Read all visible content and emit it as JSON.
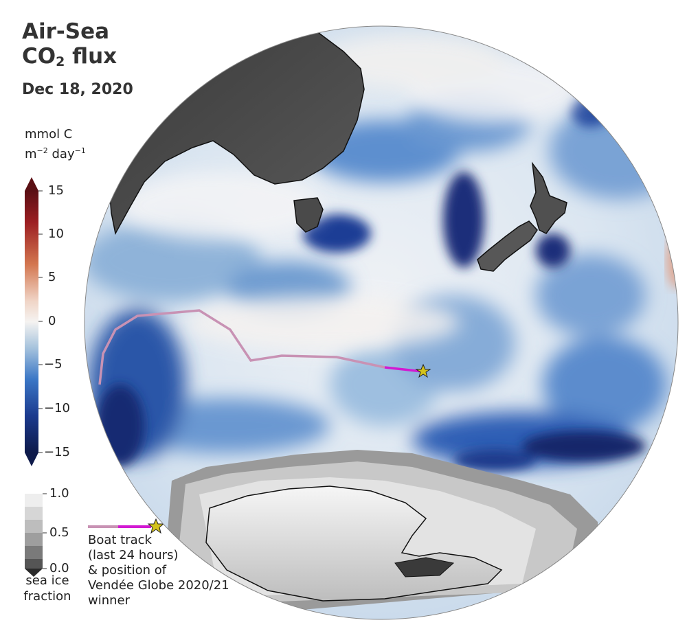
{
  "title": {
    "line1": "Air-Sea",
    "line2_main": "CO",
    "line2_sub": "2",
    "line2_rest": " flux"
  },
  "date": "Dec 18, 2020",
  "units": {
    "line1": "mmol C",
    "line2_m": "m",
    "line2_exp1": "−2",
    "line2_day": " day",
    "line2_exp2": "−1"
  },
  "flux_colorbar": {
    "ticks": [
      "15",
      "10",
      "5",
      "0",
      "−5",
      "−10",
      "−15"
    ],
    "colors": {
      "max": "#5a0f14",
      "pos": "#c9583a",
      "zero": "#f5f3f1",
      "neg": "#3a6fc0",
      "min": "#0e1a4a"
    }
  },
  "ice_colorbar": {
    "ticks": [
      "1.0",
      "0.5",
      "0.0"
    ],
    "caption_line1": "sea ice",
    "caption_line2": "fraction"
  },
  "legend": {
    "line1": "Boat track",
    "line2": "(last 24 hours)",
    "line3": "& position of",
    "line4": "Vendée Globe 2020/21",
    "line5": "winner",
    "track_color_old": "#c892b4",
    "track_color_recent": "#d21ad2",
    "star_color": "#d4c21a"
  }
}
